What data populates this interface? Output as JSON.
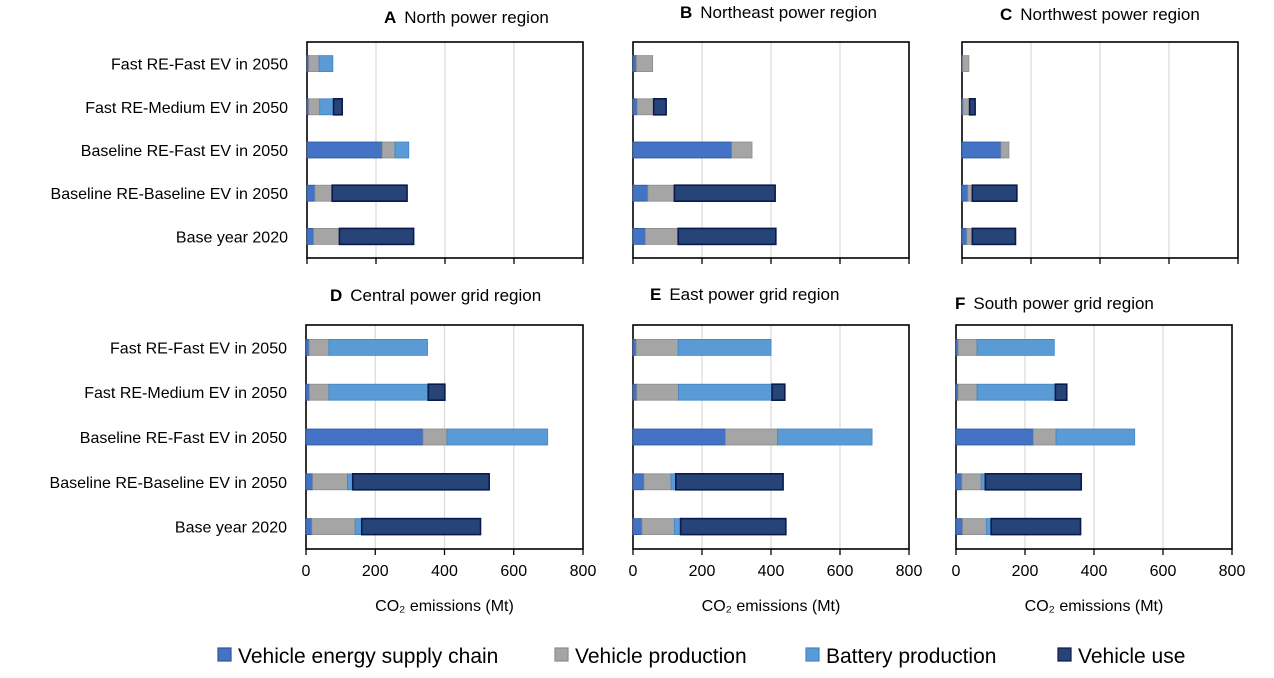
{
  "colors": {
    "supply": "#4472C4",
    "production": "#A5A5A5",
    "battery": "#5B9BD5",
    "use": "#264478",
    "grid": "#d9d9d9"
  },
  "legend": [
    {
      "key": "supply",
      "label": "Vehicle energy supply chain"
    },
    {
      "key": "production",
      "label": "Vehicle production"
    },
    {
      "key": "battery",
      "label": "Battery production"
    },
    {
      "key": "use",
      "label": "Vehicle use"
    }
  ],
  "chart_data": [
    {
      "type": "bar",
      "orientation": "horizontal",
      "stacked": true,
      "letter": "A",
      "title": "North power region",
      "categories": [
        "Fast RE-Fast EV in 2050",
        "Fast RE-Medium EV in 2050",
        "Baseline RE-Fast EV in 2050",
        "Baseline RE-Baseline EV in 2050",
        "Base year 2020"
      ],
      "xlim": [
        0,
        800
      ],
      "xticks": [
        0,
        200,
        400,
        600,
        800
      ],
      "show_tick_labels": false,
      "xlabel": "",
      "grid": true,
      "series": [
        {
          "name": "Vehicle energy supply chain",
          "key": "supply",
          "values": [
            5,
            5,
            218,
            23,
            19
          ]
        },
        {
          "name": "Vehicle production",
          "key": "production",
          "values": [
            30,
            32,
            37,
            50,
            75
          ]
        },
        {
          "name": "Battery production",
          "key": "battery",
          "values": [
            40,
            40,
            40,
            0,
            0
          ]
        },
        {
          "name": "Vehicle use",
          "key": "use",
          "values": [
            0,
            25,
            0,
            217,
            215
          ]
        }
      ]
    },
    {
      "type": "bar",
      "orientation": "horizontal",
      "stacked": true,
      "letter": "B",
      "title": "Northeast power region",
      "categories": [
        "Fast RE-Fast EV in 2050",
        "Fast RE-Medium EV in 2050",
        "Baseline RE-Fast EV in 2050",
        "Baseline RE-Baseline EV in 2050",
        "Base year 2020"
      ],
      "xlim": [
        0,
        800
      ],
      "xticks": [
        0,
        200,
        400,
        600,
        800
      ],
      "show_tick_labels": false,
      "xlabel": "",
      "grid": true,
      "series": [
        {
          "name": "Vehicle energy supply chain",
          "key": "supply",
          "values": [
            10,
            12,
            286,
            43,
            36
          ]
        },
        {
          "name": "Vehicle production",
          "key": "production",
          "values": [
            47,
            48,
            59,
            77,
            95
          ]
        },
        {
          "name": "Battery production",
          "key": "battery",
          "values": [
            0,
            0,
            0,
            0,
            0
          ]
        },
        {
          "name": "Vehicle use",
          "key": "use",
          "values": [
            0,
            36,
            0,
            292,
            283
          ]
        }
      ]
    },
    {
      "type": "bar",
      "orientation": "horizontal",
      "stacked": true,
      "letter": "C",
      "title": "Northwest power region",
      "categories": [
        "Fast RE-Fast EV in 2050",
        "Fast RE-Medium EV in 2050",
        "Baseline RE-Fast EV in 2050",
        "Baseline RE-Baseline EV in 2050",
        "Base year 2020"
      ],
      "xlim": [
        0,
        800
      ],
      "xticks": [
        0,
        200,
        400,
        600,
        800
      ],
      "show_tick_labels": false,
      "xlabel": "",
      "grid": true,
      "series": [
        {
          "name": "Vehicle energy supply chain",
          "key": "supply",
          "values": [
            2,
            3,
            113,
            17,
            14
          ]
        },
        {
          "name": "Vehicle production",
          "key": "production",
          "values": [
            18,
            19,
            23,
            13,
            16
          ]
        },
        {
          "name": "Battery production",
          "key": "battery",
          "values": [
            0,
            0,
            0,
            0,
            0
          ]
        },
        {
          "name": "Vehicle use",
          "key": "use",
          "values": [
            0,
            16,
            0,
            129,
            125
          ]
        }
      ]
    },
    {
      "type": "bar",
      "orientation": "horizontal",
      "stacked": true,
      "letter": "D",
      "title": "Central power grid region",
      "categories": [
        "Fast RE-Fast EV in 2050",
        "Fast RE-Medium EV in 2050",
        "Baseline RE-Fast EV in 2050",
        "Baseline RE-Baseline EV in 2050",
        "Base year 2020"
      ],
      "xlim": [
        0,
        800
      ],
      "xticks": [
        0,
        200,
        400,
        600,
        800
      ],
      "show_tick_labels": true,
      "xlabel": "CO₂ emissions (Mt)",
      "grid": true,
      "series": [
        {
          "name": "Vehicle energy supply chain",
          "key": "supply",
          "values": [
            9,
            10,
            338,
            19,
            17
          ]
        },
        {
          "name": "Vehicle production",
          "key": "production",
          "values": [
            57,
            56,
            69,
            101,
            125
          ]
        },
        {
          "name": "Battery production",
          "key": "battery",
          "values": [
            285,
            287,
            291,
            15,
            19
          ]
        },
        {
          "name": "Vehicle use",
          "key": "use",
          "values": [
            0,
            48,
            0,
            394,
            343
          ]
        }
      ]
    },
    {
      "type": "bar",
      "orientation": "horizontal",
      "stacked": true,
      "letter": "E",
      "title": "East power grid region",
      "categories": [
        "Fast RE-Fast EV in 2050",
        "Fast RE-Medium EV in 2050",
        "Baseline RE-Fast EV in 2050",
        "Baseline RE-Baseline EV in 2050",
        "Base year 2020"
      ],
      "xlim": [
        0,
        800
      ],
      "xticks": [
        0,
        200,
        400,
        600,
        800
      ],
      "show_tick_labels": true,
      "xlabel": "CO₂ emissions (Mt)",
      "grid": true,
      "series": [
        {
          "name": "Vehicle energy supply chain",
          "key": "supply",
          "values": [
            9,
            11,
            268,
            32,
            26
          ]
        },
        {
          "name": "Vehicle production",
          "key": "production",
          "values": [
            122,
            121,
            151,
            78,
            94
          ]
        },
        {
          "name": "Battery production",
          "key": "battery",
          "values": [
            269,
            271,
            274,
            14,
            18
          ]
        },
        {
          "name": "Vehicle use",
          "key": "use",
          "values": [
            0,
            37,
            0,
            311,
            305
          ]
        }
      ]
    },
    {
      "type": "bar",
      "orientation": "horizontal",
      "stacked": true,
      "letter": "F",
      "title": "South power grid region",
      "categories": [
        "Fast RE-Fast EV in 2050",
        "Fast RE-Medium EV in 2050",
        "Baseline RE-Fast EV in 2050",
        "Baseline RE-Baseline EV in 2050",
        "Base year 2020"
      ],
      "xlim": [
        0,
        800
      ],
      "xticks": [
        0,
        200,
        400,
        600,
        800
      ],
      "show_tick_labels": true,
      "xlabel": "CO₂ emissions (Mt)",
      "grid": true,
      "series": [
        {
          "name": "Vehicle energy supply chain",
          "key": "supply",
          "values": [
            6,
            6,
            224,
            17,
            19
          ]
        },
        {
          "name": "Vehicle production",
          "key": "production",
          "values": [
            55,
            55,
            66,
            56,
            69
          ]
        },
        {
          "name": "Battery production",
          "key": "battery",
          "values": [
            224,
            227,
            228,
            12,
            14
          ]
        },
        {
          "name": "Vehicle use",
          "key": "use",
          "values": [
            0,
            33,
            0,
            278,
            259
          ]
        }
      ]
    }
  ]
}
